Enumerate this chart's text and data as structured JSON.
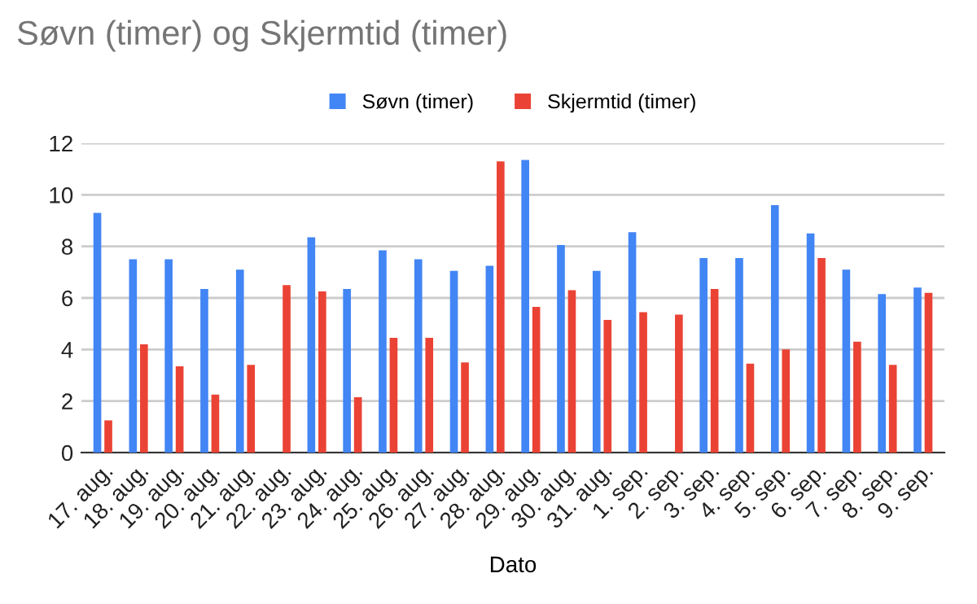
{
  "chart_data": {
    "type": "bar",
    "title": "Søvn (timer) og Skjermtid (timer)",
    "xlabel": "Dato",
    "categories": [
      "17. aug.",
      "18. aug.",
      "19. aug.",
      "20. aug.",
      "21. aug.",
      "22. aug.",
      "23. aug.",
      "24. aug.",
      "25. aug.",
      "26. aug.",
      "27. aug.",
      "28. aug.",
      "29. aug.",
      "30. aug.",
      "31. aug.",
      "1. sep.",
      "2. sep.",
      "3. sep.",
      "4. sep.",
      "5. sep.",
      "6. sep.",
      "7. sep.",
      "8. sep.",
      "9. sep."
    ],
    "series": [
      {
        "name": "Søvn (timer)",
        "color": "#4285f4",
        "values": [
          9.3,
          7.5,
          7.5,
          6.35,
          7.1,
          null,
          8.35,
          6.35,
          7.85,
          7.5,
          7.05,
          7.25,
          11.35,
          8.05,
          7.05,
          8.55,
          null,
          7.55,
          7.55,
          9.6,
          8.5,
          7.1,
          6.15,
          6.4
        ]
      },
      {
        "name": "Skjermtid (timer)",
        "color": "#ea4335",
        "values": [
          1.25,
          4.2,
          3.35,
          2.25,
          3.4,
          6.5,
          6.25,
          2.15,
          4.45,
          4.45,
          3.5,
          11.3,
          5.65,
          6.3,
          5.15,
          5.45,
          5.35,
          6.35,
          3.45,
          4.0,
          7.55,
          4.3,
          3.4,
          6.2
        ]
      }
    ],
    "ylim": [
      0,
      12
    ],
    "yticks": [
      0,
      2,
      4,
      6,
      8,
      10,
      12
    ],
    "grid": "y",
    "legend": "top"
  }
}
